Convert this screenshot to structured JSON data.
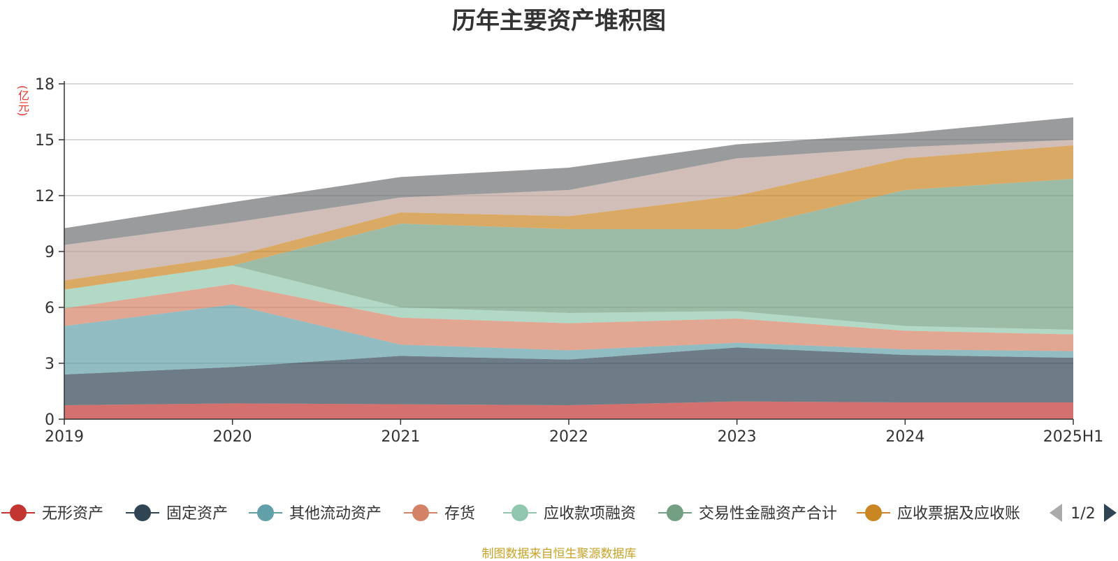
{
  "chart_data": {
    "type": "area",
    "stacked": true,
    "title": "历年主要资产堆积图",
    "unit_label": "(亿元)",
    "categories": [
      "2019",
      "2020",
      "2021",
      "2022",
      "2023",
      "2024",
      "2025H1"
    ],
    "ylim": [
      0,
      18
    ],
    "yticks": [
      0,
      3,
      6,
      9,
      12,
      15,
      18
    ],
    "grid": true,
    "legend_position": "bottom",
    "series": [
      {
        "name": "无形资产",
        "color": "#c23531",
        "values": [
          0.75,
          0.85,
          0.8,
          0.75,
          0.95,
          0.9,
          0.9
        ]
      },
      {
        "name": "固定资产",
        "color": "#2f4554",
        "values": [
          1.65,
          1.95,
          2.6,
          2.45,
          2.9,
          2.55,
          2.4
        ]
      },
      {
        "name": "其他流动资产",
        "color": "#61a0a8",
        "values": [
          2.6,
          3.35,
          0.6,
          0.5,
          0.25,
          0.3,
          0.35
        ]
      },
      {
        "name": "存货",
        "color": "#d48265",
        "values": [
          0.95,
          1.1,
          1.45,
          1.45,
          1.3,
          1.0,
          0.9
        ]
      },
      {
        "name": "应收款项融资",
        "color": "#91c7ae",
        "values": [
          1.0,
          1.0,
          0.55,
          0.55,
          0.4,
          0.25,
          0.25
        ]
      },
      {
        "name": "交易性金融资产合计",
        "color": "#749f83",
        "values": [
          0,
          0,
          4.5,
          4.5,
          4.4,
          7.3,
          8.1
        ]
      },
      {
        "name": "应收票据及应收账",
        "color": "#ca8622",
        "values": [
          0.5,
          0.5,
          0.6,
          0.7,
          1.8,
          1.7,
          1.8
        ]
      },
      {
        "color": "#bda29a",
        "values": [
          1.9,
          1.8,
          0.8,
          1.4,
          2.0,
          0.6,
          0.3
        ]
      },
      {
        "color": "#6e7074",
        "values": [
          0.9,
          1.1,
          1.1,
          1.2,
          0.75,
          0.75,
          1.2
        ]
      }
    ],
    "legend_visible_count": 7,
    "legend_page": "1/2"
  },
  "source_note": "制图数据来自恒生聚源数据库"
}
